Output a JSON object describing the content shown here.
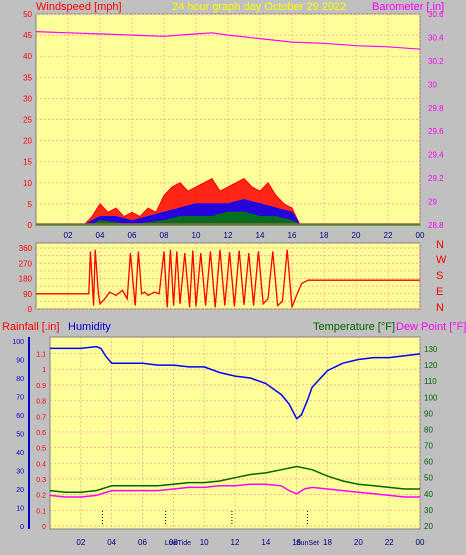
{
  "colors": {
    "panel": "#ffff99",
    "frame": "#808080",
    "wind": "#ff0000",
    "gust_band": "#0000ff",
    "calm_band": "#008000",
    "barometer": "#ff00ff",
    "direction": "#ff0000",
    "humidity": "#0000ff",
    "temperature": "#006400",
    "dew_point": "#ff00ff",
    "grid": "#ff9999"
  },
  "chart_data": [
    {
      "type": "line",
      "title": "24 hour graph day   October 29 2022",
      "left_axis_label": "Windspeed [mph]",
      "right_axis_label": "Barometer [.in]",
      "x_tick_labels": [
        "02",
        "04",
        "06",
        "08",
        "10",
        "12",
        "14",
        "16",
        "18",
        "20",
        "22",
        "00"
      ],
      "x_range_hours": [
        0,
        24
      ],
      "left_ticks": [
        0,
        5,
        10,
        15,
        20,
        25,
        30,
        35,
        40,
        45,
        50
      ],
      "left_ylim": [
        0,
        50
      ],
      "right_ticks": [
        "28.8",
        "29",
        "29.2",
        "29.4",
        "29.6",
        "29.8",
        "30",
        "30.2",
        "30.4",
        "30.6"
      ],
      "right_ylim": [
        28.8,
        30.6
      ],
      "series": [
        {
          "axis": "left",
          "x": [
            0,
            3,
            3.5,
            4,
            4.5,
            5,
            5.5,
            6,
            6.5,
            7,
            7.5,
            8,
            8.5,
            9,
            9.5,
            10,
            10.5,
            11,
            11.5,
            12,
            12.5,
            13,
            13.5,
            14,
            14.5,
            15,
            15.5,
            16,
            16.5,
            17,
            24
          ],
          "values": [
            0,
            0,
            2,
            5,
            3,
            4,
            2,
            3,
            2,
            4,
            3,
            7,
            9,
            10,
            8,
            9,
            10,
            11,
            8,
            9,
            10,
            11,
            9,
            8,
            10,
            7,
            5,
            4,
            0,
            0,
            0
          ]
        },
        {
          "axis": "left",
          "x": [
            0,
            3,
            3.5,
            4,
            5,
            6,
            7,
            8,
            9,
            10,
            11,
            12,
            13,
            14,
            15,
            16,
            16.5,
            24
          ],
          "values": [
            0,
            0,
            1,
            2,
            2,
            1,
            2,
            3,
            4,
            5,
            5,
            5,
            6,
            5,
            4,
            3,
            0,
            0
          ]
        },
        {
          "axis": "left",
          "x": [
            0,
            3.5,
            4,
            6,
            8,
            9,
            10,
            11,
            12,
            13,
            14,
            15,
            16,
            16.5,
            24
          ],
          "values": [
            0,
            0,
            1,
            0,
            1,
            2,
            2,
            2,
            3,
            3,
            2,
            2,
            1,
            0,
            0
          ]
        },
        {
          "axis": "right",
          "x": [
            0,
            2,
            4,
            6,
            8,
            10,
            11,
            12,
            14,
            16,
            18,
            20,
            22,
            24
          ],
          "values": [
            30.45,
            30.44,
            30.43,
            30.42,
            30.41,
            30.43,
            30.44,
            30.42,
            30.39,
            30.36,
            30.35,
            30.33,
            30.32,
            30.3
          ]
        }
      ]
    },
    {
      "type": "line",
      "right_axis_label": "N W S E N",
      "left_ticks": [
        0,
        45,
        90,
        135,
        180,
        225,
        270,
        315,
        360
      ],
      "left_tick_labels": [
        "0",
        "",
        "90",
        "",
        "180",
        "",
        "270",
        "",
        "360"
      ],
      "direction_letters": [
        "N",
        "W",
        "S",
        "E",
        "N"
      ],
      "ylim": [
        0,
        360
      ],
      "x_range_hours": [
        0,
        24
      ],
      "series": [
        {
          "x": [
            0,
            3.3,
            3.4,
            3.6,
            3.7,
            3.9,
            4.0,
            4.3,
            4.6,
            5.0,
            5.4,
            5.7,
            5.9,
            6.2,
            6.4,
            6.6,
            6.8,
            7.0,
            7.2,
            7.4,
            7.7,
            8.0,
            8.2,
            8.4,
            8.6,
            8.8,
            9.0,
            9.3,
            9.6,
            9.8,
            10.0,
            10.3,
            10.6,
            10.9,
            11.2,
            11.5,
            11.8,
            12.1,
            12.4,
            12.7,
            13.0,
            13.3,
            13.6,
            13.9,
            14.2,
            14.5,
            14.8,
            15.1,
            15.4,
            15.7,
            16.0,
            16.2,
            16.6,
            17.0,
            24
          ],
          "values": [
            90,
            90,
            340,
            20,
            350,
            90,
            30,
            60,
            100,
            80,
            110,
            60,
            330,
            20,
            340,
            90,
            100,
            80,
            90,
            100,
            90,
            340,
            10,
            350,
            20,
            340,
            30,
            330,
            10,
            345,
            15,
            330,
            20,
            340,
            10,
            350,
            20,
            335,
            15,
            345,
            25,
            330,
            20,
            340,
            30,
            60,
            340,
            20,
            45,
            350,
            10,
            60,
            150,
            170,
            170
          ]
        }
      ]
    },
    {
      "type": "line",
      "left_axis_label": "Rainfall [.in]",
      "left_axis_label_2": "Humidity",
      "right_axis_label": "Temperature [°F]",
      "right_axis_label_2": "Dew Point [°F]",
      "x_tick_labels": [
        "02",
        "04",
        "06",
        "08",
        "10",
        "12",
        "14",
        "16",
        "18",
        "20",
        "22",
        "00"
      ],
      "sun_markers": [
        "LowTide",
        "SunSet"
      ],
      "sun_marker_x": [
        8.3,
        16.7
      ],
      "humidity_ticks": [
        0,
        10,
        20,
        30,
        40,
        50,
        60,
        70,
        80,
        90,
        100
      ],
      "rain_ticks": [
        "0",
        "0.1",
        "0.2",
        "0.3",
        "0.4",
        "0.5",
        "0.6",
        "0.7",
        "0.8",
        "0.9",
        "1",
        "1.1"
      ],
      "temp_ticks": [
        20,
        30,
        40,
        50,
        60,
        70,
        80,
        90,
        100,
        110,
        120,
        130
      ],
      "ylim_humidity": [
        0,
        100
      ],
      "ylim_temp": [
        20,
        135
      ],
      "x_range_hours": [
        0,
        24
      ],
      "series": [
        {
          "name": "Humidity",
          "axis": "humidity",
          "x": [
            0,
            1,
            2,
            3,
            3.3,
            3.6,
            4,
            5,
            6,
            7,
            8,
            9,
            10,
            11,
            12,
            13,
            14,
            15,
            15.5,
            16,
            16.3,
            16.7,
            17,
            18,
            19,
            20,
            21,
            22,
            23,
            24
          ],
          "values": [
            96,
            96,
            96,
            97,
            96,
            92,
            88,
            88,
            88,
            87,
            87,
            86,
            86,
            83,
            81,
            80,
            77,
            71,
            66,
            58,
            60,
            68,
            75,
            84,
            88,
            90,
            91,
            91,
            92,
            93
          ]
        },
        {
          "name": "Temperature",
          "axis": "temp",
          "x": [
            0,
            1,
            2,
            3,
            4,
            5,
            6,
            7,
            8,
            9,
            10,
            11,
            12,
            13,
            14,
            15,
            16,
            17,
            18,
            19,
            20,
            21,
            22,
            23,
            24
          ],
          "values": [
            42,
            41,
            41,
            42,
            45,
            45,
            45,
            45,
            46,
            47,
            47,
            48,
            50,
            52,
            53,
            55,
            57,
            55,
            51,
            48,
            46,
            45,
            44,
            43,
            43
          ]
        },
        {
          "name": "Dew Point",
          "axis": "temp",
          "x": [
            0,
            1,
            2,
            3,
            4,
            5,
            6,
            7,
            8,
            9,
            10,
            11,
            12,
            13,
            14,
            15,
            15.5,
            16,
            16.5,
            17,
            18,
            19,
            20,
            21,
            22,
            23,
            24
          ],
          "values": [
            39,
            38,
            38,
            39,
            42,
            42,
            42,
            42,
            43,
            44,
            44,
            45,
            45,
            46,
            46,
            45,
            42,
            40,
            43,
            44,
            43,
            42,
            41,
            40,
            39,
            38,
            38
          ]
        }
      ]
    }
  ]
}
